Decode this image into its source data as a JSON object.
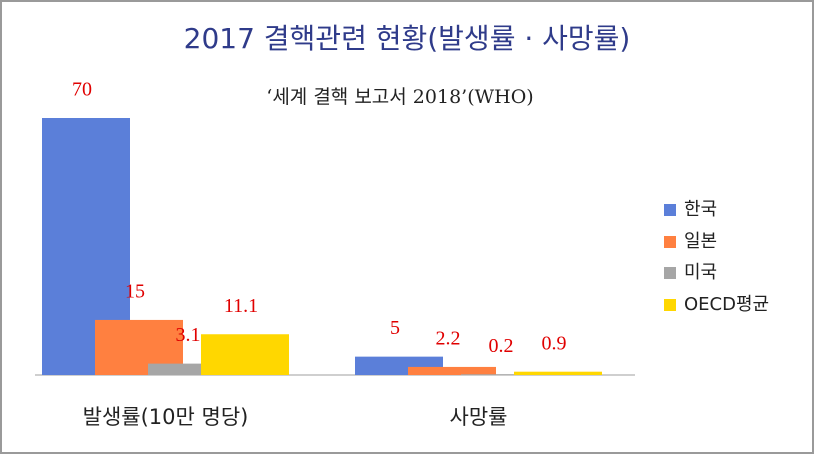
{
  "chart_data": {
    "type": "bar",
    "title": "2017 결핵관련 현황(발생률 · 사망률)",
    "subtitle": "‘세계 결핵 보고서  2018’(WHO)",
    "categories": [
      "발생률(10만 명당)",
      "사망률"
    ],
    "series": [
      {
        "name": "한국",
        "color": "#5b7fd9",
        "values": [
          70,
          5
        ]
      },
      {
        "name": "일본",
        "color": "#ff8040",
        "values": [
          15,
          2.2
        ]
      },
      {
        "name": "미국",
        "color": "#a6a6a6",
        "values": [
          3.1,
          0.2
        ]
      },
      {
        "name": "OECD평균",
        "color": "#ffd700",
        "values": [
          11.1,
          0.9
        ]
      }
    ],
    "ylim": [
      0,
      70
    ],
    "legend": "right"
  }
}
